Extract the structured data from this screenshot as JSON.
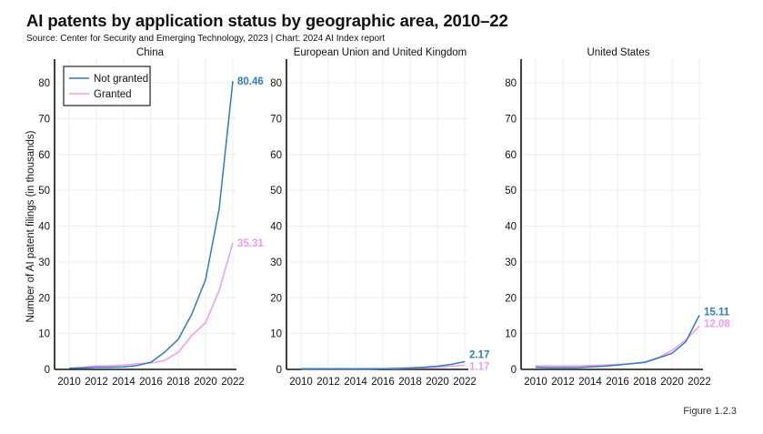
{
  "header": {
    "title": "AI patents by application status by geographic area, 2010–22",
    "subtitle": "Source: Center for Security and Emerging Technology, 2023 | Chart: 2024 AI Index report"
  },
  "footer": {
    "figure_label": "Figure 1.2.3"
  },
  "colors": {
    "not_granted": "#2f7bbf",
    "granted": "#ee9cf3"
  },
  "chart_data": [
    {
      "type": "line",
      "title": "China",
      "xlabel": "",
      "ylabel": "Number of AI patent filings (in thousands)",
      "x": [
        2010,
        2011,
        2012,
        2013,
        2014,
        2015,
        2016,
        2017,
        2018,
        2019,
        2020,
        2021,
        2022
      ],
      "xticks": [
        "2010",
        "2012",
        "2014",
        "2016",
        "2018",
        "2020",
        "2022"
      ],
      "yticks": [
        "0",
        "10",
        "20",
        "30",
        "40",
        "50",
        "60",
        "70",
        "80"
      ],
      "ylim": [
        0,
        85
      ],
      "grid": true,
      "legend": {
        "position": "top-left",
        "entries": [
          "Not granted",
          "Granted"
        ]
      },
      "series": [
        {
          "name": "Not granted",
          "values": [
            0.3,
            0.4,
            0.6,
            0.6,
            0.7,
            1.1,
            2.0,
            4.8,
            8.4,
            15.5,
            25.0,
            44.8,
            80.46
          ],
          "end_label": "80.46"
        },
        {
          "name": "Granted",
          "values": [
            0.3,
            0.6,
            1.0,
            1.0,
            1.2,
            1.6,
            1.8,
            2.5,
            4.8,
            9.5,
            13.0,
            22.0,
            35.31
          ],
          "end_label": "35.31"
        }
      ]
    },
    {
      "type": "line",
      "title": "European Union and United Kingdom",
      "x": [
        2010,
        2011,
        2012,
        2013,
        2014,
        2015,
        2016,
        2017,
        2018,
        2019,
        2020,
        2021,
        2022
      ],
      "xticks": [
        "2010",
        "2012",
        "2014",
        "2016",
        "2018",
        "2020",
        "2022"
      ],
      "yticks": [
        "0",
        "10",
        "20",
        "30",
        "40",
        "50",
        "60",
        "70",
        "80"
      ],
      "ylim": [
        0,
        85
      ],
      "grid": true,
      "series": [
        {
          "name": "Not granted",
          "values": [
            0.2,
            0.2,
            0.2,
            0.2,
            0.2,
            0.2,
            0.2,
            0.3,
            0.4,
            0.6,
            0.9,
            1.4,
            2.17
          ],
          "end_label": "2.17"
        },
        {
          "name": "Granted",
          "values": [
            0.1,
            0.1,
            0.1,
            0.1,
            0.1,
            0.1,
            0.2,
            0.2,
            0.3,
            0.4,
            0.6,
            0.9,
            1.17
          ],
          "end_label": "1.17"
        }
      ]
    },
    {
      "type": "line",
      "title": "United States",
      "x": [
        2010,
        2011,
        2012,
        2013,
        2014,
        2015,
        2016,
        2017,
        2018,
        2019,
        2020,
        2021,
        2022
      ],
      "xticks": [
        "2010",
        "2012",
        "2014",
        "2016",
        "2018",
        "2020",
        "2022"
      ],
      "yticks": [
        "0",
        "10",
        "20",
        "30",
        "40",
        "50",
        "60",
        "70",
        "80"
      ],
      "ylim": [
        0,
        85
      ],
      "grid": true,
      "series": [
        {
          "name": "Not granted",
          "values": [
            0.6,
            0.5,
            0.5,
            0.5,
            0.7,
            0.9,
            1.2,
            1.6,
            2.0,
            3.2,
            4.5,
            7.7,
            15.11
          ],
          "end_label": "15.11"
        },
        {
          "name": "Granted",
          "values": [
            1.0,
            1.0,
            1.0,
            1.0,
            1.1,
            1.2,
            1.4,
            1.6,
            1.9,
            3.3,
            5.3,
            8.2,
            12.08
          ],
          "end_label": "12.08"
        }
      ]
    }
  ]
}
